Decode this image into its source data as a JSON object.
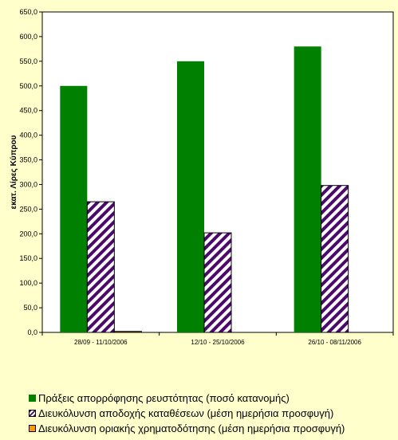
{
  "colors": {
    "background": "#ffffcc",
    "plot_area": "#ffffff",
    "series_1": "#008000",
    "series_2_hatch": "#4b0a6b",
    "series_3": "#ff9900"
  },
  "chart_data": {
    "type": "bar",
    "title": "",
    "xlabel": "",
    "ylabel": "εκατ. Λίρες Κύπρου",
    "ylim": [
      0,
      650
    ],
    "y_ticks": [
      "0,0",
      "50,0",
      "100,0",
      "150,0",
      "200,0",
      "250,0",
      "300,0",
      "350,0",
      "400,0",
      "450,0",
      "500,0",
      "550,0",
      "600,0",
      "650,0"
    ],
    "grid": false,
    "legend_position": "bottom",
    "categories": [
      "28/09 - 11/10/2006",
      "12/10 - 25/10/2006",
      "26/10 - 08/11/2006"
    ],
    "series": [
      {
        "name": "Πράξεις απορρόφησης ρευστότητας (ποσό κατανομής)",
        "values": [
          500,
          550,
          580
        ],
        "pattern": "solid-green"
      },
      {
        "name": "Διευκόλυνση αποδοχής καταθέσεων (μέση ημερήσια προσφυγή)",
        "values": [
          265,
          202,
          298
        ],
        "pattern": "diagonal-hatch-purple"
      },
      {
        "name": "Διευκόλυνση οριακής χρηματοδότησης (μέση ημερήσια προσφυγή)",
        "values": [
          2,
          0,
          0
        ],
        "pattern": "solid-orange"
      }
    ]
  }
}
